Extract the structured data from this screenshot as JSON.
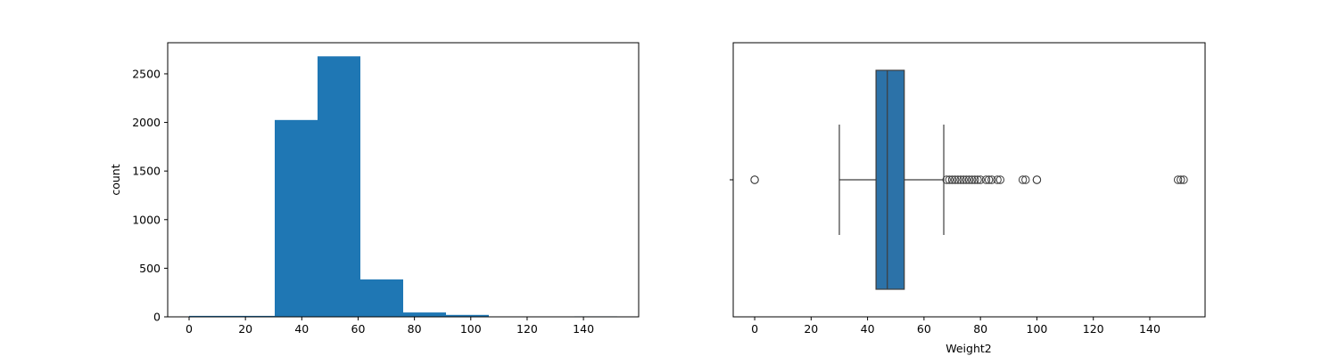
{
  "chart_data": [
    {
      "type": "bar",
      "subtype": "histogram",
      "xlabel": "",
      "ylabel": "count",
      "xlim": [
        -7.6,
        159.6
      ],
      "ylim": [
        0,
        2820
      ],
      "x_ticks": [
        0,
        20,
        40,
        60,
        80,
        100,
        120,
        140
      ],
      "y_ticks": [
        0,
        500,
        1000,
        1500,
        2000,
        2500
      ],
      "bin_edges": [
        0,
        15.2,
        30.4,
        45.6,
        60.8,
        76.0,
        91.2,
        106.4,
        121.6,
        136.8,
        152.0
      ],
      "values": [
        10,
        10,
        2025,
        2680,
        385,
        45,
        20,
        0,
        0,
        5
      ],
      "color": "#1f77b4",
      "grid": false
    },
    {
      "type": "boxplot",
      "xlabel": "Weight2",
      "ylabel": "",
      "xlim": [
        -7.6,
        159.6
      ],
      "x_ticks": [
        0,
        20,
        40,
        60,
        80,
        100,
        120,
        140
      ],
      "whisker_low": 30,
      "q1": 43,
      "median": 47,
      "q3": 53,
      "whisker_high": 67,
      "outliers": [
        0,
        0,
        68,
        69,
        70,
        71,
        72,
        73,
        74,
        75,
        76,
        77,
        78,
        79,
        80,
        82,
        83,
        84,
        86,
        87,
        95,
        96,
        100,
        100,
        150,
        151,
        152
      ],
      "color": "#2c72a8",
      "grid": false
    }
  ]
}
